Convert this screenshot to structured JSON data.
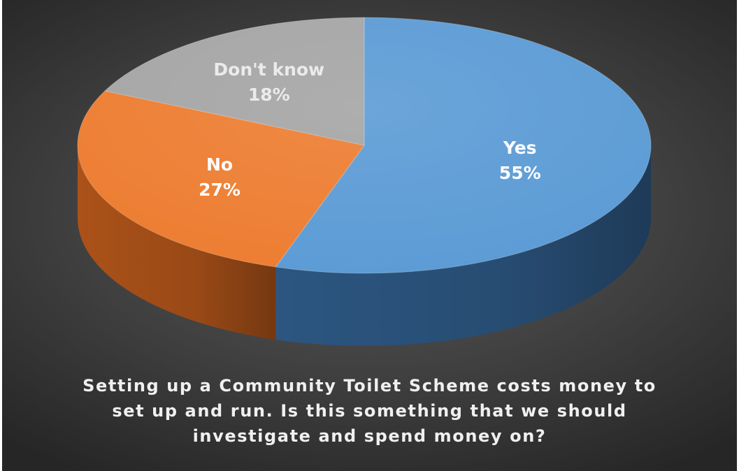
{
  "chart_data": {
    "type": "pie",
    "style": "3d",
    "title": "Setting up a Community Toilet Scheme costs money to set up and run. Is this something that we should investigate and spend money on?",
    "title_lines": [
      "Setting up a Community Toilet Scheme costs money to",
      "set up and run. Is this something that we should",
      "investigate and spend money on?"
    ],
    "slices": [
      {
        "label": "Yes",
        "value": 55,
        "display": "55%",
        "color": "#5b9bd5",
        "side_color": "#2e5a87",
        "label_color": "#ffffff"
      },
      {
        "label": "No",
        "value": 27,
        "display": "27%",
        "color": "#ed7d31",
        "side_color": "#b4561a",
        "label_color": "#ffffff"
      },
      {
        "label": "Don't know",
        "value": 18,
        "display": "18%",
        "color": "#a5a5a5",
        "side_color": "#707070",
        "label_color": "#ebebeb"
      }
    ],
    "legend": "none",
    "data_labels": "inside"
  }
}
